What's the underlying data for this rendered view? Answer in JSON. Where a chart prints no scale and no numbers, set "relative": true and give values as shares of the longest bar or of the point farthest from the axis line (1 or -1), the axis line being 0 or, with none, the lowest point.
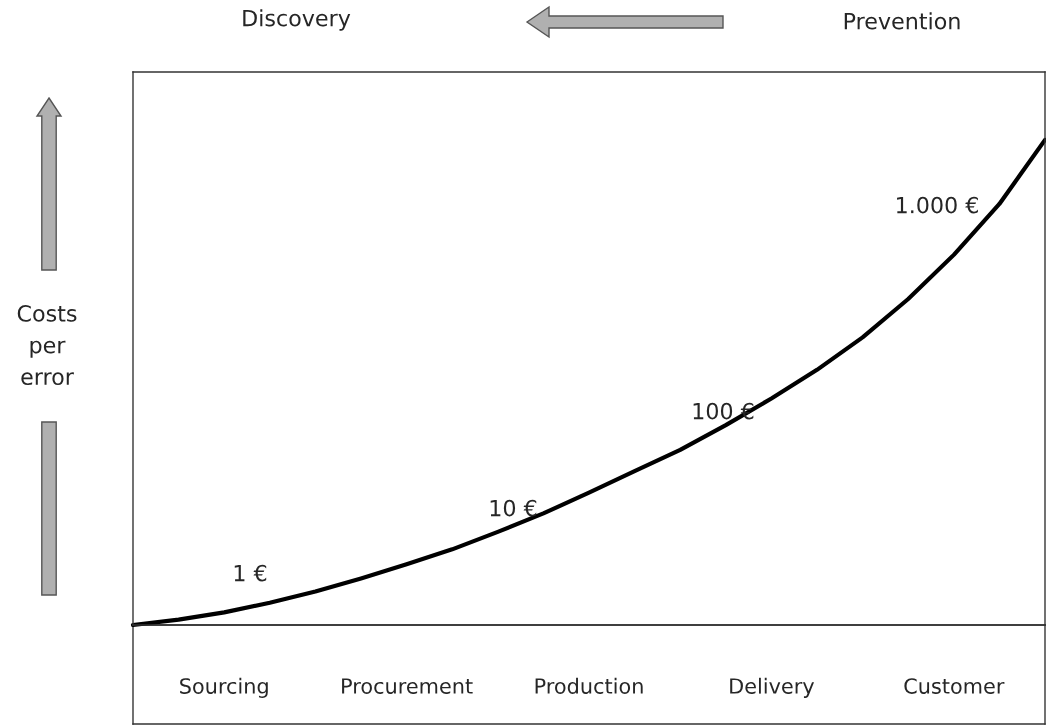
{
  "chart_data": {
    "type": "line",
    "relative": true,
    "categories": [
      null,
      null,
      "Sourcing",
      null,
      null,
      null,
      "Procurement",
      null,
      null,
      null,
      "Production",
      null,
      null,
      null,
      "Delivery",
      null,
      null,
      null,
      "Customer",
      null,
      null
    ],
    "ylabel": "Costs per error",
    "series": [
      {
        "color": "#000000",
        "values": [
          0,
          0.011,
          0.026,
          0.046,
          0.069,
          0.096,
          0.125,
          0.156,
          0.192,
          0.23,
          0.273,
          0.317,
          0.361,
          0.412,
          0.467,
          0.526,
          0.593,
          0.672,
          0.763,
          0.868,
          1
        ]
      }
    ],
    "annotations": [
      "1 €",
      "10 €",
      "100 €",
      "1.000 €",
      "Discovery",
      "Prevention"
    ],
    "legend": false,
    "marker": "none",
    "line_style": "solid"
  }
}
